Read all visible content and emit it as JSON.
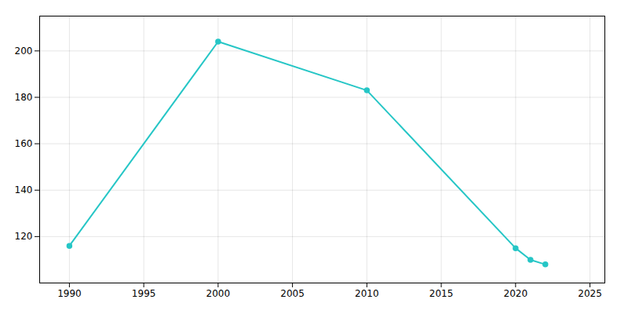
{
  "chart_data": {
    "type": "line",
    "x": [
      1990,
      2000,
      2010,
      2020,
      2021,
      2022
    ],
    "values": [
      116,
      204,
      183,
      115,
      110,
      108
    ],
    "color": "#26c6c6",
    "xlim": [
      1988,
      2026
    ],
    "ylim": [
      100,
      215
    ],
    "xticks": [
      1990,
      1995,
      2000,
      2005,
      2010,
      2015,
      2020,
      2025
    ],
    "yticks": [
      120,
      140,
      160,
      180,
      200
    ],
    "grid": true,
    "marker": "circle"
  }
}
